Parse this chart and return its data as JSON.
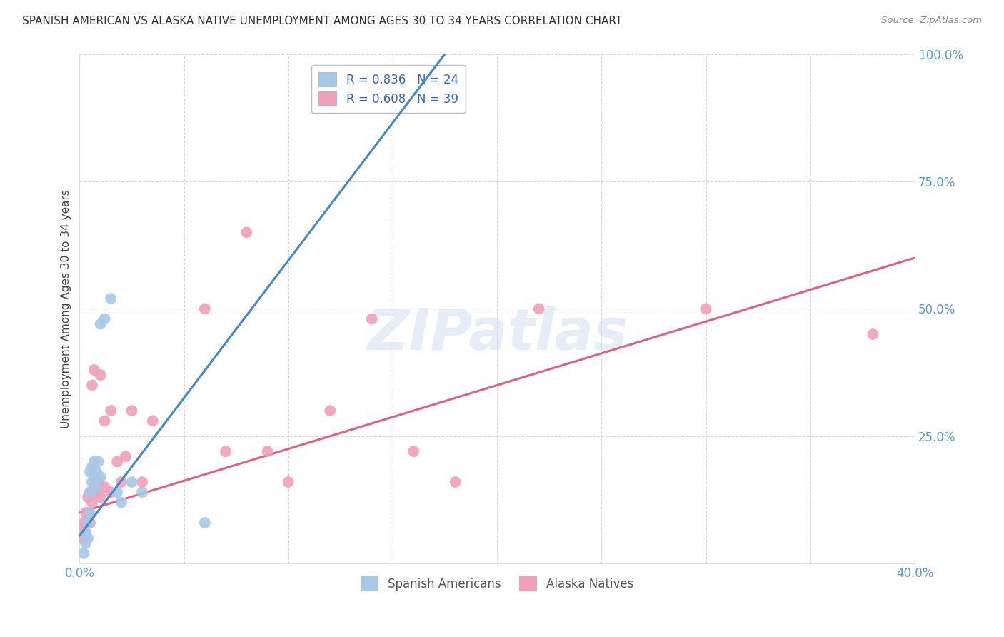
{
  "title": "SPANISH AMERICAN VS ALASKA NATIVE UNEMPLOYMENT AMONG AGES 30 TO 34 YEARS CORRELATION CHART",
  "source": "Source: ZipAtlas.com",
  "ylabel": "Unemployment Among Ages 30 to 34 years",
  "xlim": [
    0.0,
    0.4
  ],
  "ylim": [
    0.0,
    1.0
  ],
  "xticks": [
    0.0,
    0.05,
    0.1,
    0.15,
    0.2,
    0.25,
    0.3,
    0.35,
    0.4
  ],
  "yticks": [
    0.0,
    0.25,
    0.5,
    0.75,
    1.0
  ],
  "legend_r_blue": "0.836",
  "legend_n_blue": "24",
  "legend_r_pink": "0.608",
  "legend_n_pink": "39",
  "legend_label_blue": "Spanish Americans",
  "legend_label_pink": "Alaska Natives",
  "blue_color": "#a8c8e8",
  "pink_color": "#f0a0b8",
  "blue_line_color": "#4488cc",
  "pink_line_color": "#e06080",
  "watermark_text": "ZIPatlas",
  "blue_scatter_x": [
    0.002,
    0.003,
    0.003,
    0.004,
    0.004,
    0.005,
    0.005,
    0.005,
    0.006,
    0.006,
    0.007,
    0.007,
    0.008,
    0.008,
    0.009,
    0.01,
    0.01,
    0.012,
    0.015,
    0.018,
    0.02,
    0.025,
    0.03,
    0.06
  ],
  "blue_scatter_y": [
    0.02,
    0.04,
    0.06,
    0.05,
    0.08,
    0.1,
    0.14,
    0.18,
    0.16,
    0.19,
    0.17,
    0.2,
    0.15,
    0.18,
    0.2,
    0.17,
    0.47,
    0.48,
    0.52,
    0.14,
    0.12,
    0.16,
    0.14,
    0.08
  ],
  "pink_scatter_x": [
    0.001,
    0.002,
    0.002,
    0.003,
    0.003,
    0.004,
    0.004,
    0.005,
    0.005,
    0.006,
    0.006,
    0.007,
    0.007,
    0.008,
    0.009,
    0.01,
    0.01,
    0.012,
    0.012,
    0.015,
    0.015,
    0.018,
    0.02,
    0.022,
    0.025,
    0.03,
    0.035,
    0.06,
    0.07,
    0.08,
    0.09,
    0.1,
    0.12,
    0.14,
    0.16,
    0.18,
    0.22,
    0.3,
    0.38
  ],
  "pink_scatter_y": [
    0.05,
    0.07,
    0.08,
    0.06,
    0.1,
    0.1,
    0.13,
    0.08,
    0.14,
    0.12,
    0.35,
    0.15,
    0.38,
    0.14,
    0.16,
    0.13,
    0.37,
    0.15,
    0.28,
    0.14,
    0.3,
    0.2,
    0.16,
    0.21,
    0.3,
    0.16,
    0.28,
    0.5,
    0.22,
    0.65,
    0.22,
    0.16,
    0.3,
    0.48,
    0.22,
    0.16,
    0.5,
    0.5,
    0.45
  ],
  "blue_line_x0": 0.0,
  "blue_line_y0": 0.055,
  "blue_line_x1": 0.175,
  "blue_line_y1": 1.0,
  "pink_line_x0": 0.0,
  "pink_line_y0": 0.1,
  "pink_line_x1": 0.4,
  "pink_line_y1": 0.6
}
